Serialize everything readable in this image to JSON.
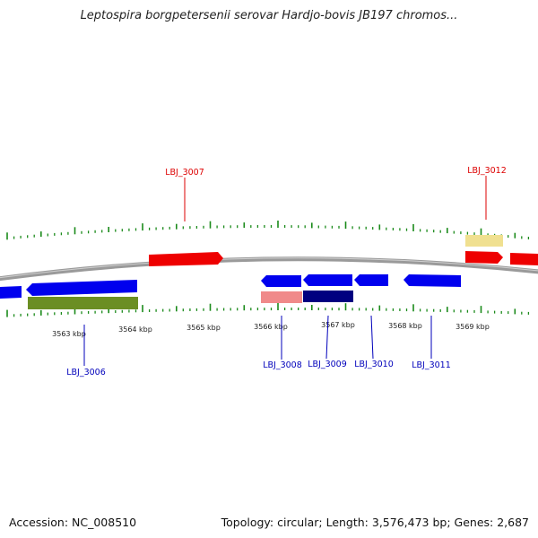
{
  "title": "Leptospira borgpetersenii serovar Hardjo-bovis JB197 chromos...",
  "footer": {
    "accession": "Accession: NC_008510",
    "summary": "Topology: circular; Length: 3,576,473 bp; Genes: 2,687"
  },
  "colors": {
    "backbone": "#8a8a8a",
    "forward_gene": "#ee0000",
    "reverse_gene": "#0000ee",
    "tick": "#1a8a1a",
    "label_top": "#dd0000",
    "label_bottom": "#0000bb",
    "olive": "#6b8e23",
    "pink": "#f08a8a",
    "navy": "#000080",
    "pale_yellow": "#f0e090"
  },
  "scale_labels": [
    "3563 kbp",
    "3564 kbp",
    "3565 kbp",
    "3566 kbp",
    "3567 kbp",
    "3568 kbp",
    "3569 kbp"
  ],
  "gene_labels_top": [
    "LBJ_3007",
    "LBJ_3012"
  ],
  "gene_labels_bottom": [
    "LBJ_3006",
    "LBJ_3008",
    "LBJ_3009",
    "LBJ_3010",
    "LBJ_3011"
  ]
}
